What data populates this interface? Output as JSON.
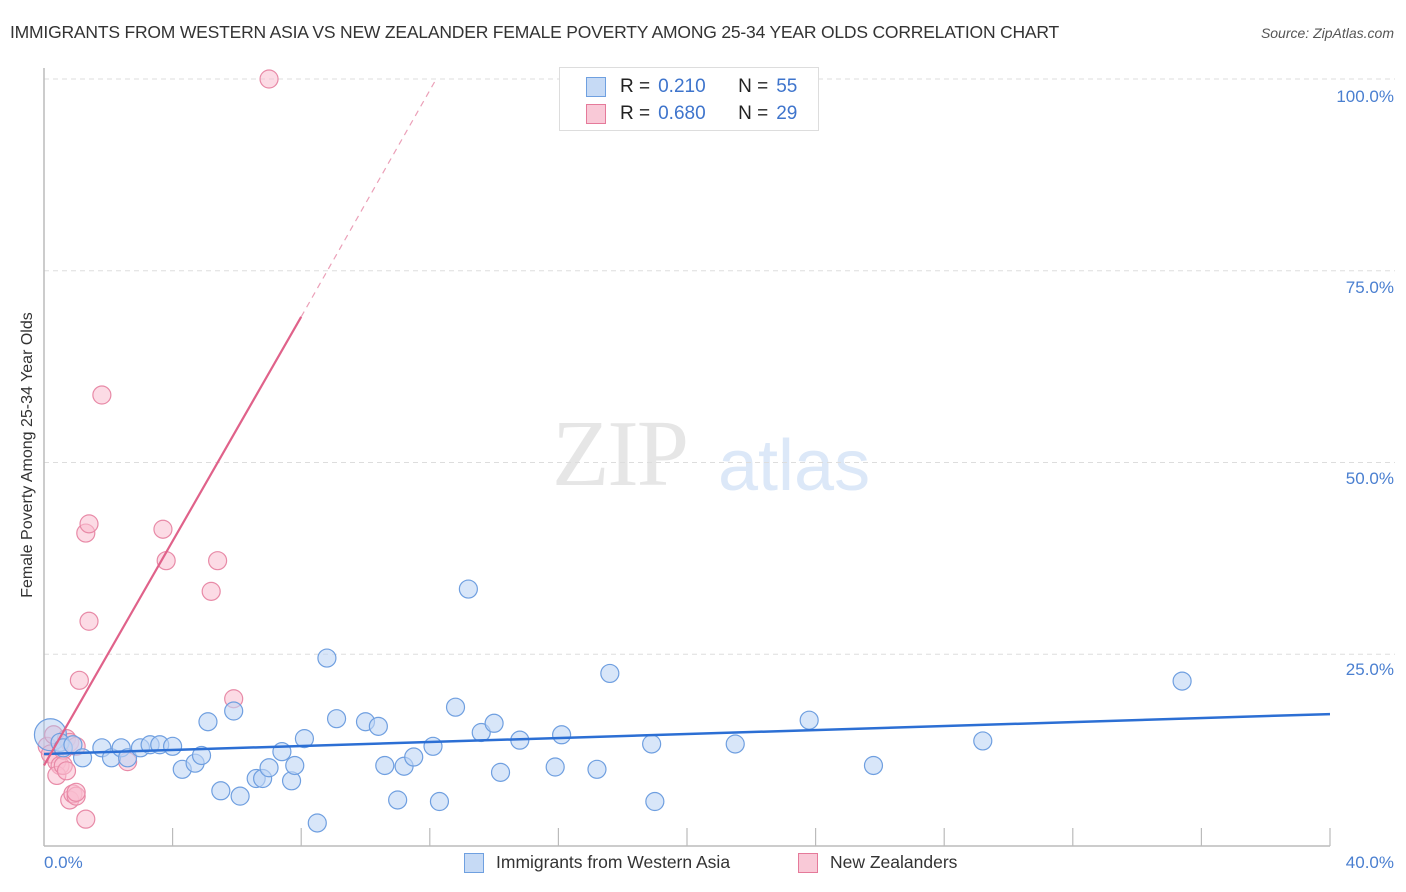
{
  "header": {
    "title": "IMMIGRANTS FROM WESTERN ASIA VS NEW ZEALANDER FEMALE POVERTY AMONG 25-34 YEAR OLDS CORRELATION CHART",
    "source": "Source: ZipAtlas.com"
  },
  "watermark": {
    "zip": "ZIP",
    "atlas": "atlas"
  },
  "legend": {
    "series": [
      {
        "label": "Immigrants from Western Asia",
        "r_label": "R =",
        "r_value": "0.210",
        "n_label": "N =",
        "n_value": "55",
        "color": "#6fa0e0",
        "fill": "#c6daf5"
      },
      {
        "label": "New Zealanders",
        "r_label": "R =",
        "r_value": "0.680",
        "n_label": "N =",
        "n_value": "29",
        "color": "#e57a9a",
        "fill": "#f9c9d7"
      }
    ]
  },
  "axes": {
    "ylabel": "Female Poverty Among 25-34 Year Olds",
    "y_ticks": [
      "100.0%",
      "75.0%",
      "50.0%",
      "25.0%"
    ],
    "x_tick_left": "0.0%",
    "x_tick_right": "40.0%"
  },
  "chart_data": {
    "type": "scatter",
    "title": "IMMIGRANTS FROM WESTERN ASIA VS NEW ZEALANDER FEMALE POVERTY AMONG 25-34 YEAR OLDS CORRELATION CHART",
    "xlabel": "",
    "ylabel": "Female Poverty Among 25-34 Year Olds",
    "xlim": [
      0,
      40
    ],
    "ylim": [
      0,
      100
    ],
    "x_ticks": [
      "0.0%",
      "40.0%"
    ],
    "y_ticks": [
      "25.0%",
      "50.0%",
      "75.0%",
      "100.0%"
    ],
    "grid": "horizontal dashed",
    "legend_position": "top-center and bottom",
    "series": [
      {
        "name": "Immigrants from Western Asia",
        "color": "#3f7fd6",
        "R": 0.21,
        "N": 55,
        "trend": {
          "x0": 0,
          "y0": 12.0,
          "x1": 40,
          "y1": 17.2
        },
        "points": [
          [
            0.2,
            14.5
          ],
          [
            0.5,
            13.5
          ],
          [
            0.6,
            12.8
          ],
          [
            0.9,
            13.2
          ],
          [
            1.2,
            11.5
          ],
          [
            1.8,
            12.8
          ],
          [
            2.1,
            11.5
          ],
          [
            2.4,
            12.8
          ],
          [
            2.6,
            11.5
          ],
          [
            3.0,
            12.8
          ],
          [
            3.3,
            13.2
          ],
          [
            3.6,
            13.2
          ],
          [
            4.0,
            13.0
          ],
          [
            4.3,
            10.0
          ],
          [
            4.7,
            10.8
          ],
          [
            4.9,
            11.8
          ],
          [
            5.1,
            16.2
          ],
          [
            5.5,
            7.2
          ],
          [
            5.9,
            17.6
          ],
          [
            6.1,
            6.5
          ],
          [
            6.6,
            8.8
          ],
          [
            6.8,
            8.8
          ],
          [
            7.0,
            10.2
          ],
          [
            7.4,
            12.3
          ],
          [
            7.7,
            8.5
          ],
          [
            7.8,
            10.5
          ],
          [
            8.1,
            14.0
          ],
          [
            8.5,
            3.0
          ],
          [
            8.8,
            24.5
          ],
          [
            9.1,
            16.6
          ],
          [
            10.0,
            16.2
          ],
          [
            10.4,
            15.6
          ],
          [
            10.6,
            10.5
          ],
          [
            11.0,
            6.0
          ],
          [
            11.2,
            10.4
          ],
          [
            11.5,
            11.6
          ],
          [
            12.1,
            13.0
          ],
          [
            12.3,
            5.8
          ],
          [
            12.8,
            18.1
          ],
          [
            13.2,
            33.5
          ],
          [
            13.6,
            14.8
          ],
          [
            14.0,
            16.0
          ],
          [
            14.2,
            9.6
          ],
          [
            14.8,
            13.8
          ],
          [
            15.9,
            10.3
          ],
          [
            16.1,
            14.5
          ],
          [
            17.2,
            10.0
          ],
          [
            17.6,
            22.5
          ],
          [
            18.9,
            13.3
          ],
          [
            19.0,
            5.8
          ],
          [
            21.5,
            13.3
          ],
          [
            23.8,
            16.4
          ],
          [
            25.8,
            10.5
          ],
          [
            29.2,
            13.7
          ],
          [
            35.4,
            21.5
          ]
        ]
      },
      {
        "name": "New Zealanders",
        "color": "#e0628a",
        "R": 0.68,
        "N": 29,
        "trend_solid": {
          "x0": 0,
          "y0": 10.5,
          "x1": 8.0,
          "y1": 69.0
        },
        "trend_dashed": {
          "x0": 8.0,
          "y0": 69.0,
          "x1": 12.2,
          "y1": 100.0
        },
        "points": [
          [
            0.1,
            13.0
          ],
          [
            0.2,
            12.0
          ],
          [
            0.3,
            14.5
          ],
          [
            0.4,
            11.0
          ],
          [
            0.5,
            10.5
          ],
          [
            0.6,
            12.5
          ],
          [
            0.7,
            14.0
          ],
          [
            0.8,
            13.5
          ],
          [
            1.0,
            13.0
          ],
          [
            0.4,
            9.2
          ],
          [
            0.6,
            10.5
          ],
          [
            0.7,
            9.8
          ],
          [
            0.8,
            6.0
          ],
          [
            0.9,
            6.8
          ],
          [
            1.0,
            6.5
          ],
          [
            1.0,
            7.0
          ],
          [
            1.3,
            3.5
          ],
          [
            1.1,
            21.6
          ],
          [
            1.4,
            29.3
          ],
          [
            1.3,
            40.8
          ],
          [
            1.4,
            42.0
          ],
          [
            3.7,
            41.3
          ],
          [
            3.8,
            37.2
          ],
          [
            5.2,
            33.2
          ],
          [
            5.4,
            37.2
          ],
          [
            5.9,
            19.2
          ],
          [
            2.6,
            11.0
          ],
          [
            1.8,
            58.8
          ],
          [
            7.0,
            100.0
          ]
        ]
      }
    ]
  }
}
